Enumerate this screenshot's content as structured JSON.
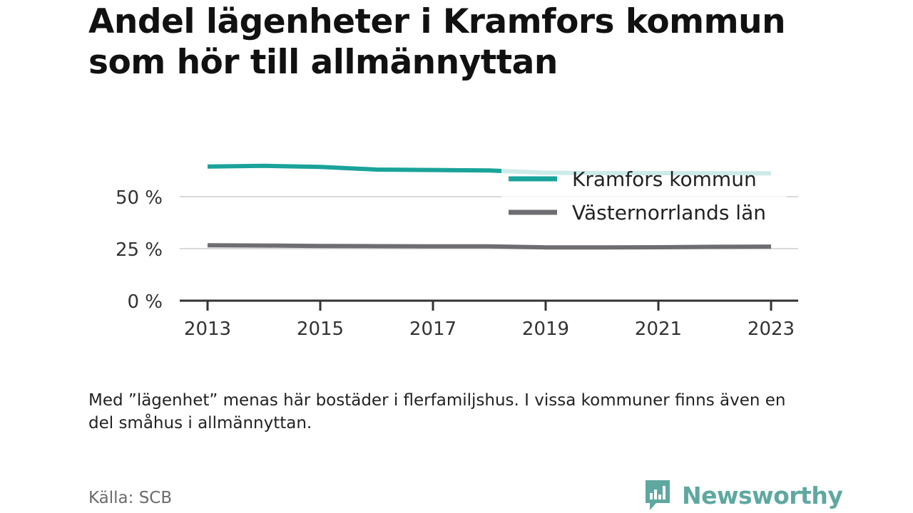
{
  "title": "Andel lägenheter i Kramfors kommun som hör till allmännyttan",
  "note": "Med ”lägenhet” menas här bostäder i flerfamiljshus. I vissa kommuner finns även en del småhus i allmännyttan.",
  "source": "Källa: SCB",
  "brand": "Newsworthy",
  "colors": {
    "kramfors": "#1aa39a",
    "lan": "#6e6e72",
    "brand": "#5fa8a0"
  },
  "chart_data": {
    "type": "line",
    "x": [
      2013,
      2014,
      2015,
      2016,
      2017,
      2018,
      2019,
      2020,
      2021,
      2022,
      2023
    ],
    "x_ticks": [
      2013,
      2015,
      2017,
      2019,
      2021,
      2023
    ],
    "x_tick_labels": [
      "2013",
      "2015",
      "2017",
      "2019",
      "2021",
      "2023"
    ],
    "y_ticks": [
      0,
      25,
      50
    ],
    "y_tick_labels": [
      "0 %",
      "25 %",
      "50 %"
    ],
    "ylim": [
      0,
      70
    ],
    "grid": true,
    "legend_position": "top-right",
    "series": [
      {
        "name": "Kramfors kommun",
        "key": "kramfors",
        "values": [
          64.5,
          64.8,
          64.3,
          63.0,
          62.8,
          62.6,
          61.5,
          61.3,
          61.3,
          61.2,
          61.2
        ]
      },
      {
        "name": "Västernorrlands län",
        "key": "lan",
        "values": [
          26.6,
          26.5,
          26.3,
          26.2,
          26.1,
          26.1,
          25.6,
          25.6,
          25.7,
          25.9,
          26.0
        ]
      }
    ]
  }
}
